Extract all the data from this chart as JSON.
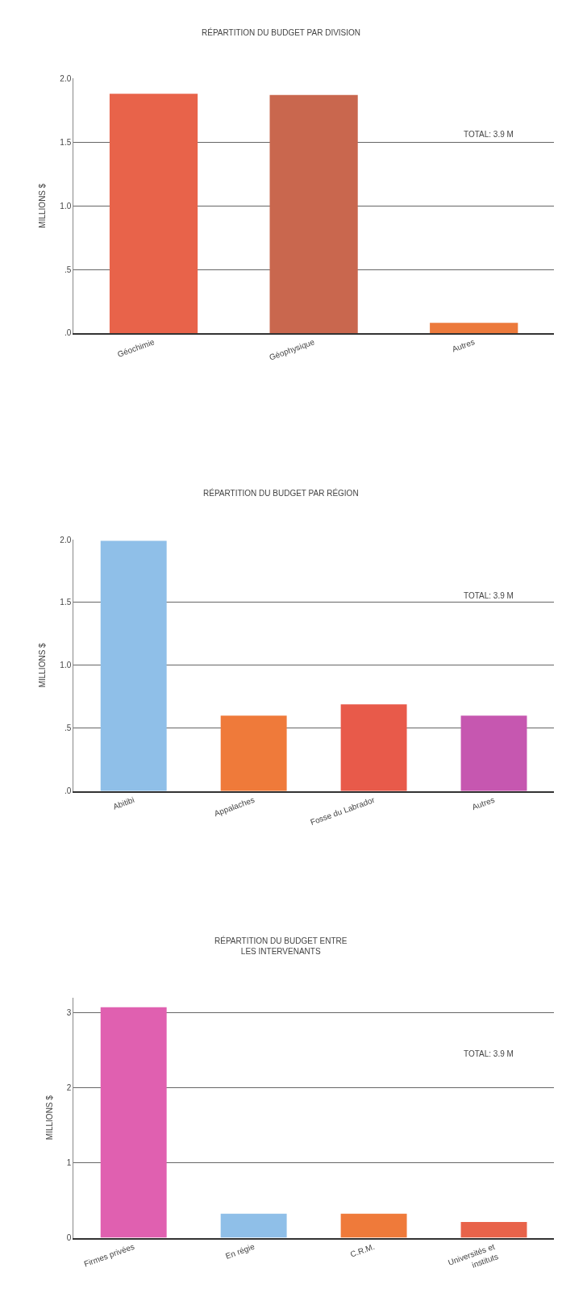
{
  "chart_data": [
    {
      "type": "bar",
      "title": "RÉPARTITION DU BUDGET PAR DIVISION",
      "ylabel": "MILLIONS $",
      "categories": [
        "Géochimie",
        "Géophysique",
        "Autres"
      ],
      "values": [
        1.88,
        1.87,
        0.08
      ],
      "colors": [
        "#e8634a",
        "#c9674e",
        "#ec7a3c"
      ],
      "ylim": [
        0,
        2
      ],
      "yticks": [
        {
          "value": 0,
          "label": ".0"
        },
        {
          "value": 0.5,
          "label": ".5"
        },
        {
          "value": 1,
          "label": "1.0"
        },
        {
          "value": 1.5,
          "label": "1.5"
        },
        {
          "value": 2,
          "label": "2.0"
        }
      ],
      "grid": "y",
      "annotations": [
        "TOTAL: 3.9 M"
      ]
    },
    {
      "type": "bar",
      "title": "RÉPARTITION DU BUDGET PAR RÉGION",
      "ylabel": "MILLIONS $",
      "categories": [
        "Abitibi",
        "Appalaches",
        "Fosse du Labrador",
        "Autres"
      ],
      "values": [
        1.99,
        0.6,
        0.69,
        0.6
      ],
      "colors": [
        "#8fbfe8",
        "#ef7a3a",
        "#e85a4a",
        "#c657b0"
      ],
      "ylim": [
        0,
        2
      ],
      "yticks": [
        {
          "value": 0,
          "label": ".0"
        },
        {
          "value": 0.5,
          "label": ".5"
        },
        {
          "value": 1,
          "label": "1.0"
        },
        {
          "value": 1.5,
          "label": "1.5"
        },
        {
          "value": 2,
          "label": "2.0"
        }
      ],
      "grid": "y",
      "annotations": [
        "TOTAL: 3.9 M"
      ]
    },
    {
      "type": "bar",
      "title": "RÉPARTITION DU BUDGET ENTRE\nLES INTERVENANTS",
      "ylabel": "MILLIONS $",
      "categories": [
        "Firmes privées",
        "En régie",
        "C.R.M.",
        "Universités et\ninstituts"
      ],
      "values": [
        3.07,
        0.32,
        0.32,
        0.21
      ],
      "colors": [
        "#e060b0",
        "#8fbfe8",
        "#ef7a3a",
        "#e8634a"
      ],
      "ylim": [
        0,
        3.2
      ],
      "yticks": [
        0,
        1,
        2,
        3
      ],
      "grid": "y",
      "annotations": [
        "TOTAL: 3.9 M"
      ]
    }
  ]
}
